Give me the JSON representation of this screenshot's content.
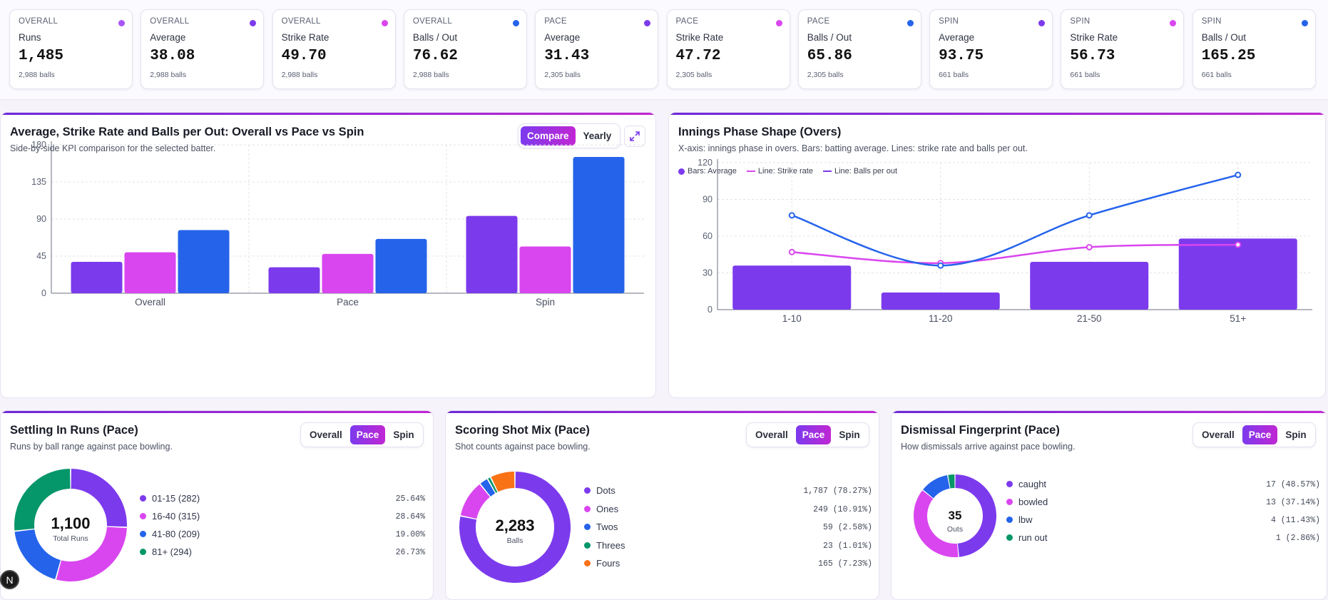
{
  "kpis": [
    {
      "group": "OVERALL",
      "label": "Runs",
      "value": "1,485",
      "sub": "2,988 balls",
      "color": "#a855f7"
    },
    {
      "group": "OVERALL",
      "label": "Average",
      "value": "38.08",
      "sub": "2,988 balls",
      "color": "#7c3aed"
    },
    {
      "group": "OVERALL",
      "label": "Strike Rate",
      "value": "49.70",
      "sub": "2,988 balls",
      "color": "#d946ef"
    },
    {
      "group": "OVERALL",
      "label": "Balls / Out",
      "value": "76.62",
      "sub": "2,988 balls",
      "color": "#2563eb"
    },
    {
      "group": "PACE",
      "label": "Average",
      "value": "31.43",
      "sub": "2,305 balls",
      "color": "#7c3aed"
    },
    {
      "group": "PACE",
      "label": "Strike Rate",
      "value": "47.72",
      "sub": "2,305 balls",
      "color": "#d946ef"
    },
    {
      "group": "PACE",
      "label": "Balls / Out",
      "value": "65.86",
      "sub": "2,305 balls",
      "color": "#2563eb"
    },
    {
      "group": "SPIN",
      "label": "Average",
      "value": "93.75",
      "sub": "661 balls",
      "color": "#7c3aed"
    },
    {
      "group": "SPIN",
      "label": "Strike Rate",
      "value": "56.73",
      "sub": "661 balls",
      "color": "#d946ef"
    },
    {
      "group": "SPIN",
      "label": "Balls / Out",
      "value": "165.25",
      "sub": "661 balls",
      "color": "#2563eb"
    }
  ],
  "compare_panel": {
    "title": "Average, Strike Rate and Balls per Out: Overall vs Pace vs Spin",
    "subtitle": "Side-by-side KPI comparison for the selected batter.",
    "toggle": [
      "Compare",
      "Yearly"
    ],
    "active": "Compare",
    "expand_icon": "expand-icon"
  },
  "phase_panel": {
    "title": "Innings Phase Shape (Overs)",
    "subtitle": "X-axis: innings phase in overs. Bars: batting average. Lines: strike rate and balls per out.",
    "legend": [
      "Bars: Average",
      "Line: Strike rate",
      "Line: Balls per out"
    ]
  },
  "settling_panel": {
    "title": "Settling In Runs (Pace)",
    "subtitle": "Runs by ball range against pace bowling.",
    "toggle": [
      "Overall",
      "Pace",
      "Spin"
    ],
    "active": "Pace",
    "center_value": "1,100",
    "center_label": "Total Runs"
  },
  "shot_panel": {
    "title": "Scoring Shot Mix (Pace)",
    "subtitle": "Shot counts against pace bowling.",
    "toggle": [
      "Overall",
      "Pace",
      "Spin"
    ],
    "active": "Pace",
    "center_value": "2,283",
    "center_label": "Balls"
  },
  "dismissal_panel": {
    "title": "Dismissal Fingerprint (Pace)",
    "subtitle": "How dismissals arrive against pace bowling.",
    "toggle": [
      "Overall",
      "Pace",
      "Spin"
    ],
    "active": "Pace",
    "center_value": "35",
    "center_label": "Outs"
  },
  "chart_data": [
    {
      "type": "bar",
      "categories": [
        "Overall",
        "Pace",
        "Spin"
      ],
      "series": [
        {
          "values": [
            38.08,
            31.43,
            93.75
          ],
          "color": "#7c3aed"
        },
        {
          "values": [
            49.7,
            47.72,
            56.73
          ],
          "color": "#d946ef"
        },
        {
          "values": [
            76.62,
            65.86,
            165.25
          ],
          "color": "#2563eb"
        }
      ],
      "ylim": [
        0,
        180
      ],
      "yticks": [
        0,
        45,
        90,
        135,
        180
      ],
      "grid": true
    },
    {
      "type": "bar",
      "categories": [
        "1-10",
        "11-20",
        "21-50",
        "51+"
      ],
      "bars": {
        "name": "Bars: Average",
        "values": [
          36,
          14,
          39,
          58
        ],
        "color": "#7c3aed"
      },
      "lines": [
        {
          "name": "Line: Strike rate",
          "values": [
            47,
            38,
            51,
            53
          ],
          "color": "#d946ef"
        },
        {
          "name": "Line: Balls per out",
          "values": [
            77,
            36,
            77,
            110
          ],
          "color": "#2563eb"
        }
      ],
      "ylim": [
        0,
        120
      ],
      "yticks": [
        0,
        30,
        60,
        90,
        120
      ],
      "grid": true,
      "legend": "top-left"
    },
    {
      "type": "pie",
      "slices": [
        {
          "label": "01-15 (282)",
          "value": 282,
          "pct": "25.64%",
          "color": "#7c3aed"
        },
        {
          "label": "16-40 (315)",
          "value": 315,
          "pct": "28.64%",
          "color": "#d946ef"
        },
        {
          "label": "41-80 (209)",
          "value": 209,
          "pct": "19.00%",
          "color": "#2563eb"
        },
        {
          "label": "81+ (294)",
          "value": 294,
          "pct": "26.73%",
          "color": "#059669"
        }
      ]
    },
    {
      "type": "pie",
      "slices": [
        {
          "label": "Dots",
          "value": 1787,
          "pct": "1,787 (78.27%)",
          "color": "#7c3aed"
        },
        {
          "label": "Ones",
          "value": 249,
          "pct": "249 (10.91%)",
          "color": "#d946ef"
        },
        {
          "label": "Twos",
          "value": 59,
          "pct": "59 (2.58%)",
          "color": "#2563eb"
        },
        {
          "label": "Threes",
          "value": 23,
          "pct": "23 (1.01%)",
          "color": "#059669"
        },
        {
          "label": "Fours",
          "value": 165,
          "pct": "165 (7.23%)",
          "color": "#f97316"
        }
      ]
    },
    {
      "type": "pie",
      "slices": [
        {
          "label": "caught",
          "value": 17,
          "pct": "17 (48.57%)",
          "color": "#7c3aed"
        },
        {
          "label": "bowled",
          "value": 13,
          "pct": "13 (37.14%)",
          "color": "#d946ef"
        },
        {
          "label": "lbw",
          "value": 4,
          "pct": "4 (11.43%)",
          "color": "#2563eb"
        },
        {
          "label": "run out",
          "value": 1,
          "pct": "1 (2.86%)",
          "color": "#059669"
        }
      ]
    }
  ],
  "badge": "N"
}
